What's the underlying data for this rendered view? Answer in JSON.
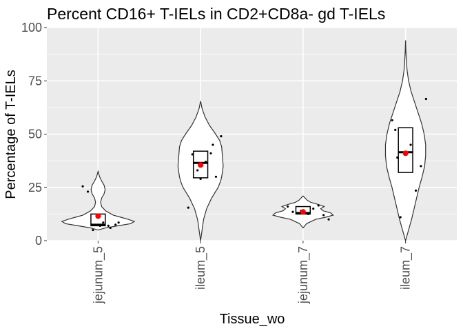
{
  "chart_data": {
    "type": "violin",
    "title": "Percent CD16+ T-IELs in CD2+CD8a- gd T-IELs",
    "xlabel": "Tissue_wo",
    "ylabel": "Percentage of T-IELs",
    "ylim": [
      0,
      100
    ],
    "yticks": [
      0,
      25,
      50,
      75,
      100
    ],
    "grid": true,
    "panel_background": "#ebebeb",
    "gridline_color": "#ffffff",
    "violin_stroke": "#333333",
    "point_color": "#000000",
    "mean_color": "#ff0000",
    "categories": [
      "jejunum_5",
      "ileum_5",
      "jejunum_7",
      "ileum_7"
    ],
    "groups": [
      {
        "name": "jejunum_5",
        "points": [
          [
            -0.15,
            25.5
          ],
          [
            -0.1,
            23.0
          ],
          [
            0.05,
            8.5
          ],
          [
            0.1,
            7.0
          ],
          [
            0.17,
            7.5
          ],
          [
            0.2,
            8.5
          ],
          [
            -0.05,
            5.0
          ],
          [
            0.02,
            7.0
          ],
          [
            0.12,
            6.0
          ]
        ],
        "mean": 11.5,
        "box": {
          "q1": 7.0,
          "median": 7.5,
          "q3": 12.5
        },
        "density_y": [
          5,
          6,
          7,
          8,
          9,
          10,
          11,
          12,
          14,
          16,
          18,
          20,
          22,
          24,
          26,
          28,
          30,
          32.5
        ],
        "density_w": [
          0.0,
          0.15,
          0.4,
          0.65,
          0.72,
          0.6,
          0.45,
          0.3,
          0.15,
          0.07,
          0.05,
          0.07,
          0.12,
          0.14,
          0.12,
          0.07,
          0.03,
          0.0
        ]
      },
      {
        "name": "ileum_5",
        "points": [
          [
            -0.12,
            15.5
          ],
          [
            0.0,
            29.0
          ],
          [
            0.15,
            30.0
          ],
          [
            -0.03,
            33.0
          ],
          [
            0.05,
            37.0
          ],
          [
            0.1,
            41.0
          ],
          [
            -0.08,
            40.5
          ],
          [
            0.12,
            45.0
          ],
          [
            0.2,
            49.0
          ]
        ],
        "mean": 35.5,
        "box": {
          "q1": 29.5,
          "median": 36.5,
          "q3": 42.0
        },
        "density_y": [
          0,
          5,
          10,
          15,
          20,
          25,
          28,
          30,
          33,
          35,
          38,
          41,
          44,
          47,
          50,
          54,
          58,
          62,
          65.5
        ],
        "density_w": [
          0.0,
          0.03,
          0.06,
          0.12,
          0.22,
          0.35,
          0.4,
          0.42,
          0.44,
          0.45,
          0.44,
          0.43,
          0.42,
          0.38,
          0.3,
          0.18,
          0.09,
          0.03,
          0.0
        ]
      },
      {
        "name": "jejunum_7",
        "points": [
          [
            -0.15,
            16.0
          ],
          [
            -0.1,
            13.5
          ],
          [
            0.05,
            12.5
          ],
          [
            0.1,
            15.0
          ],
          [
            0.15,
            16.5
          ],
          [
            0.2,
            12.0
          ],
          [
            0.25,
            10.0
          ],
          [
            -0.02,
            14.0
          ]
        ],
        "mean": 13.5,
        "box": {
          "q1": 12.5,
          "median": 13.0,
          "q3": 16.0
        },
        "density_y": [
          6,
          8,
          10,
          11,
          12,
          13,
          14,
          15,
          16,
          17,
          18,
          19,
          20,
          21
        ],
        "density_w": [
          0.0,
          0.07,
          0.25,
          0.45,
          0.6,
          0.55,
          0.4,
          0.35,
          0.42,
          0.3,
          0.15,
          0.08,
          0.04,
          0.0
        ]
      },
      {
        "name": "ileum_7",
        "points": [
          [
            -0.13,
            56.5
          ],
          [
            -0.1,
            52.0
          ],
          [
            -0.08,
            39.0
          ],
          [
            0.05,
            45.0
          ],
          [
            0.15,
            35.0
          ],
          [
            0.2,
            66.5
          ],
          [
            0.1,
            23.5
          ],
          [
            -0.05,
            11.0
          ]
        ],
        "mean": 41.0,
        "box": {
          "q1": 32.0,
          "median": 41.5,
          "q3": 53.0
        },
        "density_y": [
          0,
          5,
          10,
          15,
          20,
          25,
          30,
          35,
          40,
          45,
          50,
          55,
          60,
          65,
          70,
          75,
          80,
          85,
          90,
          94
        ],
        "density_w": [
          0.0,
          0.06,
          0.12,
          0.17,
          0.22,
          0.27,
          0.33,
          0.38,
          0.4,
          0.4,
          0.37,
          0.32,
          0.25,
          0.18,
          0.11,
          0.06,
          0.03,
          0.015,
          0.005,
          0.0
        ]
      }
    ]
  }
}
